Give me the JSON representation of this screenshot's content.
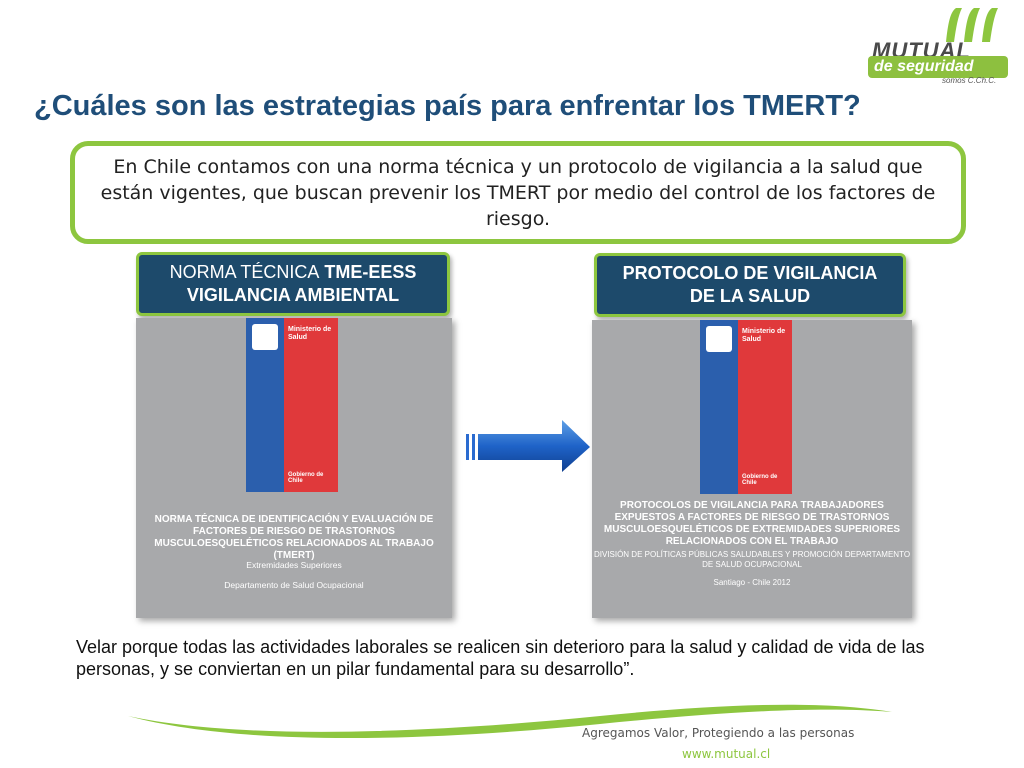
{
  "logo": {
    "line1": "MUTUAL",
    "line2": "de seguridad",
    "line3": "somos C.Ch.C."
  },
  "title": "¿Cuáles son las estrategias país para enfrentar los TMERT?",
  "intro": "En Chile contamos con una norma técnica y un protocolo de vigilancia a la salud que están vigentes, que buscan prevenir los TMERT por medio del control de los factores de riesgo.",
  "left_doc": {
    "header_normal": "NORMA TÉCNICA",
    "header_bold_1": "TME-EESS",
    "header_bold_2": "VIGILANCIA AMBIENTAL",
    "flag_ministry": "Ministerio de Salud",
    "flag_gobierno": "Gobierno de Chile",
    "cover_title": "NORMA TÉCNICA DE IDENTIFICACIÓN Y EVALUACIÓN DE FACTORES DE RIESGO DE TRASTORNOS MUSCULOESQUELÉTICOS RELACIONADOS AL TRABAJO (TMERT)",
    "cover_sub": "Extremidades Superiores",
    "cover_dept": "Departamento de Salud Ocupacional"
  },
  "right_doc": {
    "header": "PROTOCOLO DE VIGILANCIA DE LA SALUD",
    "flag_ministry": "Ministerio de Salud",
    "flag_gobierno": "Gobierno de Chile",
    "cover_title": "PROTOCOLOS DE VIGILANCIA PARA TRABAJADORES EXPUESTOS A FACTORES DE RIESGO DE TRASTORNOS MUSCULOESQUELÉTICOS DE EXTREMIDADES SUPERIORES RELACIONADOS CON EL TRABAJO",
    "cover_sub": "DIVISIÓN DE POLÍTICAS PÚBLICAS SALUDABLES Y PROMOCIÓN DEPARTAMENTO DE SALUD OCUPACIONAL",
    "cover_dept": "Santiago - Chile 2012"
  },
  "bottom_text": "Velar porque todas las actividades laborales se realicen sin deterioro para la salud y calidad de vida de las personas, y se conviertan en un pilar fundamental para su desarrollo”.",
  "footer": {
    "tagline": "Agregamos Valor, Protegiendo a las personas",
    "website": "www.mutual.cl"
  },
  "colors": {
    "brand_green": "#8dc63f",
    "title_blue": "#1f4e79",
    "header_navy": "#1d4a6b",
    "cover_gray": "#a8a9ab",
    "flag_blue": "#2b5fad",
    "flag_red": "#e0393b"
  }
}
